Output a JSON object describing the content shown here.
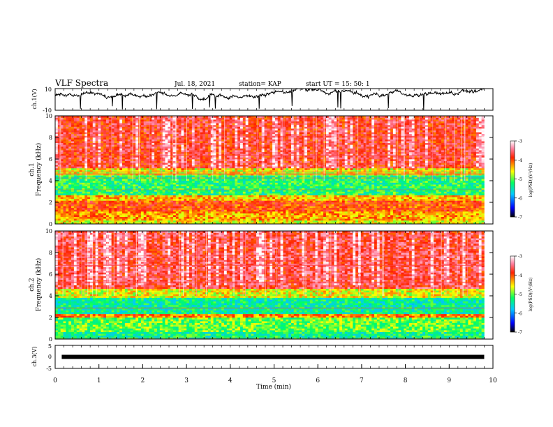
{
  "header": {
    "title": "VLF Spectra",
    "date": "Jul. 18, 2021",
    "station": "station= KAP",
    "start": "start UT = 15: 50: 1"
  },
  "chart_data": [
    {
      "type": "line",
      "panel": "ch1-waveform",
      "ylabel": "ch.1(V)",
      "ylim": [
        -10,
        10
      ],
      "yticks": [
        "10",
        "-10"
      ],
      "xlim": [
        0,
        10
      ],
      "x_end": 9.8,
      "description_values": {
        "mean": 5,
        "min": -10,
        "max": 10
      }
    },
    {
      "type": "heatmap",
      "panel": "ch1-spectrogram",
      "ylabel": [
        "ch.1",
        "Frequency (kHz)"
      ],
      "ylim": [
        0,
        10
      ],
      "yticks": [
        "0",
        "2",
        "4",
        "6",
        "8",
        "10"
      ],
      "xlim": [
        0,
        10
      ],
      "x_end": 9.8,
      "bands": [
        {
          "from": 0,
          "to": 0.4,
          "level": -4.6
        },
        {
          "from": 0.4,
          "to": 1.2,
          "level": -4.3
        },
        {
          "from": 1.2,
          "to": 2.2,
          "level": -4.0
        },
        {
          "from": 2.2,
          "to": 2.6,
          "level": -4.4
        },
        {
          "from": 2.6,
          "to": 4.5,
          "level": -5.2
        },
        {
          "from": 4.5,
          "to": 5.2,
          "level": -4.6
        },
        {
          "from": 5.2,
          "to": 10,
          "level": -3.8
        }
      ]
    },
    {
      "type": "heatmap",
      "panel": "ch2-spectrogram",
      "ylabel": [
        "ch.2",
        "Frequency (kHz)"
      ],
      "ylim": [
        0,
        10
      ],
      "yticks": [
        "0",
        "2",
        "4",
        "6",
        "8",
        "10"
      ],
      "xlim": [
        0,
        10
      ],
      "x_end": 9.8,
      "bands": [
        {
          "from": 0,
          "to": 0.6,
          "level": -5.3
        },
        {
          "from": 0.6,
          "to": 2.0,
          "level": -5.0
        },
        {
          "from": 2.0,
          "to": 2.4,
          "level": -4.2
        },
        {
          "from": 2.4,
          "to": 3.8,
          "level": -5.4
        },
        {
          "from": 3.8,
          "to": 4.6,
          "level": -4.6
        },
        {
          "from": 4.6,
          "to": 10,
          "level": -3.7
        }
      ]
    },
    {
      "type": "line",
      "panel": "ch3-waveform",
      "ylabel": "ch.3(V)",
      "ylim": [
        -5,
        5
      ],
      "yticks": [
        "5",
        "0",
        "-5"
      ],
      "xlim": [
        0,
        10
      ],
      "x_end": 9.8,
      "xlabel": "Time (min)",
      "xticks": [
        "0",
        "1",
        "2",
        "3",
        "4",
        "5",
        "6",
        "7",
        "8",
        "9",
        "10"
      ],
      "band": [
        -0.3,
        0.3
      ]
    }
  ],
  "colorbar": {
    "label": "log(PSD)(V²/Hz)",
    "range": [
      -7,
      -3
    ],
    "ticks": [
      "-3",
      "-4",
      "-5",
      "-6",
      "-7"
    ]
  }
}
